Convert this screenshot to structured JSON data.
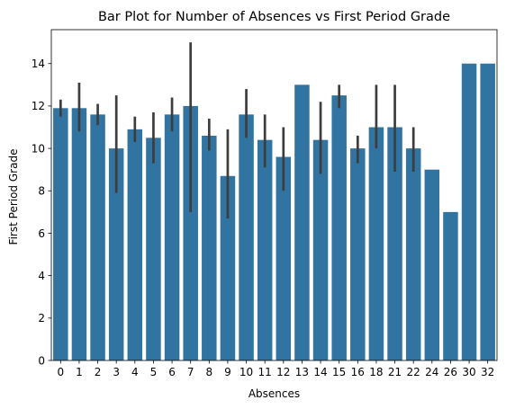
{
  "chart_data": {
    "type": "bar",
    "title": "Bar Plot for Number of Absences vs First Period Grade",
    "xlabel": "Absences",
    "ylabel": "First Period Grade",
    "categories": [
      "0",
      "1",
      "2",
      "3",
      "4",
      "5",
      "6",
      "7",
      "8",
      "9",
      "10",
      "11",
      "12",
      "13",
      "14",
      "15",
      "16",
      "18",
      "21",
      "22",
      "24",
      "26",
      "30",
      "32"
    ],
    "values": [
      11.9,
      11.9,
      11.6,
      10.0,
      10.9,
      10.5,
      11.6,
      12.0,
      10.6,
      8.7,
      11.6,
      10.4,
      9.6,
      13.0,
      10.4,
      12.5,
      10.0,
      11.0,
      11.0,
      10.0,
      9.0,
      7.0,
      14.0,
      14.0
    ],
    "error_low": [
      11.5,
      10.8,
      11.1,
      7.9,
      10.3,
      9.3,
      10.8,
      7.0,
      9.9,
      6.7,
      10.5,
      9.1,
      8.0,
      null,
      8.8,
      11.9,
      9.3,
      10.0,
      8.9,
      8.9,
      null,
      null,
      null,
      null
    ],
    "error_high": [
      12.3,
      13.1,
      12.1,
      12.5,
      11.5,
      11.7,
      12.4,
      15.0,
      11.4,
      10.9,
      12.8,
      11.6,
      11.0,
      null,
      12.2,
      13.0,
      10.6,
      13.0,
      13.0,
      11.0,
      null,
      null,
      null,
      null
    ],
    "yticks": [
      0,
      2,
      4,
      6,
      8,
      10,
      12,
      14
    ],
    "ylim": [
      0,
      15.6
    ],
    "bar_color": "#3274a1",
    "errorbar_color": "#3d3d3d",
    "grid": false,
    "legend": false
  }
}
